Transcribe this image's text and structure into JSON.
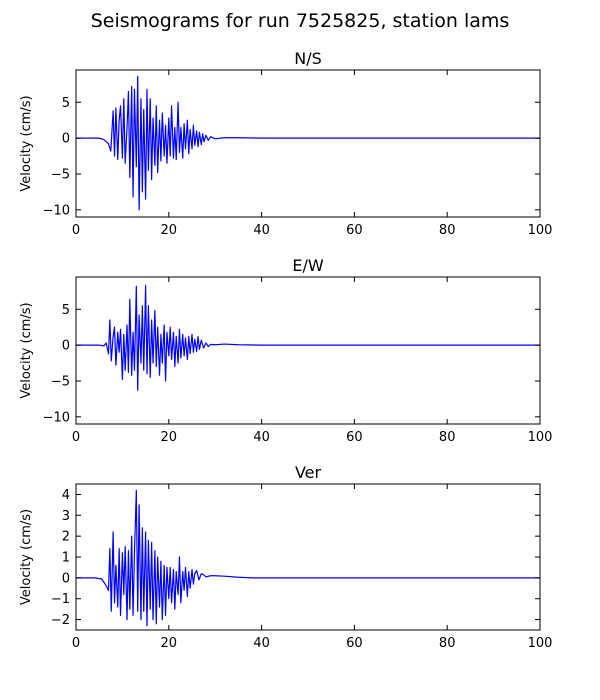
{
  "figure_title": "Seismograms for run 7525825, station lams",
  "chart_data": [
    {
      "type": "line",
      "title": "N/S",
      "xlabel": "",
      "ylabel": "Velocity (cm/s)",
      "xlim": [
        0,
        100
      ],
      "ylim": [
        -11,
        9.5
      ],
      "xticks": [
        0,
        20,
        40,
        60,
        80,
        100
      ],
      "yticks": [
        -10,
        -5,
        0,
        5
      ],
      "grid": false,
      "color": "#0000ff",
      "x": [
        0,
        5,
        6,
        7,
        7.5,
        8,
        8.3,
        8.6,
        9,
        9.3,
        9.6,
        10,
        10.3,
        10.6,
        11,
        11.3,
        11.6,
        12,
        12.3,
        12.6,
        13,
        13.3,
        13.6,
        14,
        14.3,
        14.6,
        15,
        15.3,
        15.6,
        16,
        16.3,
        16.6,
        17,
        17.3,
        17.6,
        18,
        18.3,
        18.6,
        19,
        19.3,
        19.6,
        20,
        20.3,
        20.6,
        21,
        21.3,
        21.6,
        22,
        22.3,
        22.6,
        23,
        23.3,
        23.6,
        24,
        24.3,
        24.6,
        25,
        25.3,
        25.6,
        26,
        26.3,
        26.6,
        27,
        27.3,
        27.6,
        28,
        28.5,
        29,
        30,
        32,
        35,
        40,
        100
      ],
      "y": [
        0,
        0,
        -0.2,
        -0.8,
        -1.8,
        3.8,
        -2.5,
        4.2,
        -3.0,
        2.5,
        4.5,
        -2.8,
        5.5,
        -3.5,
        1.5,
        6.5,
        -5.5,
        7.2,
        -8.2,
        6.8,
        -4.0,
        8.6,
        -10.0,
        5.5,
        -7.5,
        4.0,
        -8.5,
        6.8,
        -4.5,
        5.5,
        -5.8,
        2.8,
        -3.8,
        4.5,
        -4.8,
        2.5,
        -3.2,
        3.5,
        -2.5,
        1.8,
        -3.5,
        2.8,
        -2.5,
        4.5,
        -2.8,
        1.5,
        -3.0,
        5.0,
        -2.0,
        1.5,
        -2.8,
        2.0,
        -1.5,
        2.5,
        -2.2,
        1.2,
        -1.5,
        1.8,
        -1.0,
        1.0,
        -1.2,
        0.8,
        -0.9,
        0.6,
        -0.5,
        0.4,
        -0.3,
        0.2,
        -0.1,
        0.05,
        0.05,
        0,
        0
      ]
    },
    {
      "type": "line",
      "title": "E/W",
      "xlabel": "",
      "ylabel": "Velocity (cm/s)",
      "xlim": [
        0,
        100
      ],
      "ylim": [
        -11,
        9.5
      ],
      "xticks": [
        0,
        20,
        40,
        60,
        80,
        100
      ],
      "yticks": [
        -10,
        -5,
        0,
        5
      ],
      "grid": false,
      "color": "#0000ff",
      "x": [
        0,
        5,
        6,
        6.5,
        7,
        7.3,
        7.6,
        8,
        8.3,
        8.6,
        9,
        9.3,
        9.6,
        10,
        10.3,
        10.6,
        11,
        11.3,
        11.6,
        12,
        12.3,
        12.6,
        13,
        13.3,
        13.6,
        14,
        14.3,
        14.6,
        15,
        15.3,
        15.6,
        16,
        16.3,
        16.6,
        17,
        17.3,
        17.6,
        18,
        18.3,
        18.6,
        19,
        19.3,
        19.6,
        20,
        20.3,
        20.6,
        21,
        21.3,
        21.6,
        22,
        22.3,
        22.6,
        23,
        23.3,
        23.6,
        24,
        24.3,
        24.6,
        25,
        25.3,
        25.6,
        26,
        26.3,
        26.6,
        27,
        27.5,
        28,
        28.5,
        29,
        30,
        32,
        35,
        40,
        100
      ],
      "y": [
        0,
        0,
        -0.1,
        0.3,
        -1.2,
        3.5,
        -2.2,
        1.2,
        2.5,
        -2.8,
        1.8,
        -1.0,
        2.2,
        -4.8,
        1.5,
        -3.5,
        2.8,
        -3.8,
        6.4,
        -4.2,
        1.8,
        -3.5,
        8.2,
        -6.3,
        4.2,
        -2.5,
        5.5,
        -3.5,
        8.3,
        -4.0,
        5.5,
        -4.5,
        3.5,
        -2.5,
        4.8,
        -3.0,
        2.5,
        -4.2,
        1.5,
        -2.5,
        2.8,
        -5.0,
        1.8,
        -1.5,
        2.5,
        -2.0,
        1.8,
        -3.0,
        1.2,
        -2.5,
        2.2,
        -1.8,
        1.5,
        -1.5,
        1.0,
        -2.0,
        1.2,
        -1.2,
        1.5,
        -1.0,
        0.8,
        -0.9,
        1.2,
        -0.6,
        0.7,
        -0.4,
        0.3,
        -0.2,
        0.1,
        0.05,
        0.15,
        0.05,
        0,
        0
      ]
    },
    {
      "type": "line",
      "title": "Ver",
      "xlabel": "",
      "ylabel": "Velocity (cm/s)",
      "xlim": [
        0,
        100
      ],
      "ylim": [
        -2.5,
        4.5
      ],
      "xticks": [
        0,
        20,
        40,
        60,
        80,
        100
      ],
      "yticks": [
        -2,
        -1,
        0,
        1,
        2,
        3,
        4
      ],
      "grid": false,
      "color": "#0000ff",
      "x": [
        0,
        4,
        5.5,
        6.3,
        7,
        7.3,
        7.6,
        8,
        8.3,
        8.6,
        9,
        9.3,
        9.6,
        10,
        10.3,
        10.6,
        11,
        11.3,
        11.6,
        12,
        12.3,
        12.6,
        13,
        13.3,
        13.6,
        14,
        14.3,
        14.6,
        15,
        15.3,
        15.6,
        16,
        16.3,
        16.6,
        17,
        17.3,
        17.6,
        18,
        18.3,
        18.6,
        19,
        19.3,
        19.6,
        20,
        20.3,
        20.6,
        21,
        21.3,
        21.6,
        22,
        22.3,
        22.6,
        23,
        23.3,
        23.6,
        24,
        24.3,
        24.6,
        25,
        25.3,
        25.6,
        26,
        26.5,
        27,
        27.5,
        28,
        29,
        30,
        32,
        35,
        38,
        40,
        100
      ],
      "y": [
        0,
        0,
        -0.05,
        -0.3,
        -0.6,
        1.4,
        -1.6,
        2.2,
        -1.2,
        0.6,
        -1.4,
        1.4,
        -1.8,
        1.2,
        -0.8,
        1.5,
        -2.0,
        1.3,
        -1.5,
        2.0,
        -1.8,
        1.2,
        4.2,
        -1.6,
        3.5,
        -2.0,
        2.4,
        -1.6,
        2.2,
        -2.3,
        1.8,
        -1.5,
        1.7,
        -2.0,
        1.3,
        -2.2,
        1.0,
        -1.4,
        0.8,
        -2.0,
        0.6,
        -1.8,
        0.5,
        -1.0,
        0.5,
        -1.2,
        0.4,
        -1.5,
        0.3,
        -0.8,
        1.0,
        -1.2,
        0.3,
        -0.6,
        0.5,
        -0.9,
        0.3,
        -0.5,
        0.4,
        -0.3,
        0.2,
        0.35,
        -0.1,
        0.2,
        0.15,
        0.05,
        0.1,
        0.1,
        0.08,
        0.03,
        0,
        0,
        0
      ]
    }
  ]
}
